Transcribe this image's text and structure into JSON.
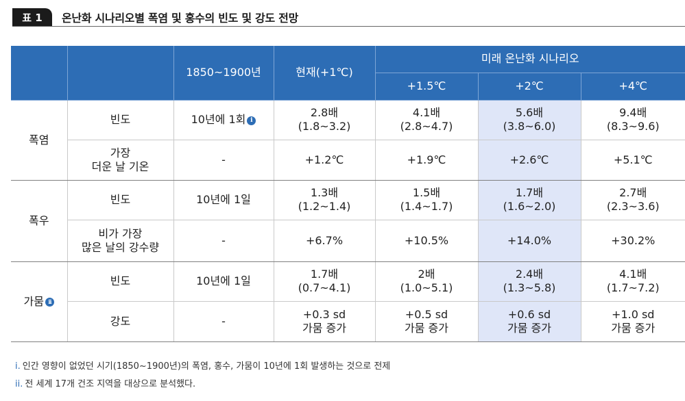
{
  "title": {
    "badge": "표 1",
    "text": "온난화 시나리오별 폭염 및 홍수의 빈도 및 강도 전망"
  },
  "header": {
    "period": "1850~1900년",
    "current": "현재(+1℃)",
    "future": "미래 온난화 시나리오",
    "scenarios": [
      "+1.5℃",
      "+2℃",
      "+4℃"
    ]
  },
  "groups": {
    "heat": "폭염",
    "rain": "폭우",
    "drought": "가뭄"
  },
  "rows": [
    {
      "metric": "빈도",
      "base": "10년에 1회",
      "cur": "2.8배\n(1.8~3.2)",
      "s15": "4.1배\n(2.8~4.7)",
      "s2": "5.6배\n(3.8~6.0)",
      "s4": "9.4배\n(8.3~9.6)"
    },
    {
      "metric": "가장\n더운 날 기온",
      "base": "-",
      "cur": "+1.2℃",
      "s15": "+1.9℃",
      "s2": "+2.6℃",
      "s4": "+5.1℃"
    },
    {
      "metric": "빈도",
      "base": "10년에 1일",
      "cur": "1.3배\n(1.2~1.4)",
      "s15": "1.5배\n(1.4~1.7)",
      "s2": "1.7배\n(1.6~2.0)",
      "s4": "2.7배\n(2.3~3.6)"
    },
    {
      "metric": "비가 가장\n많은 날의 강수량",
      "base": "-",
      "cur": "+6.7%",
      "s15": "+10.5%",
      "s2": "+14.0%",
      "s4": "+30.2%"
    },
    {
      "metric": "빈도",
      "base": "10년에 1일",
      "cur": "1.7배\n(0.7~4.1)",
      "s15": "2배\n(1.0~5.1)",
      "s2": "2.4배\n(1.3~5.8)",
      "s4": "4.1배\n(1.7~7.2)"
    },
    {
      "metric": "강도",
      "base": "-",
      "cur": "+0.3 sd\n가뭄 증가",
      "s15": "+0.5 sd\n가뭄 증가",
      "s2": "+0.6 sd\n가뭄 증가",
      "s4": "+1.0 sd\n가뭄 증가"
    }
  ],
  "footnote_icons": {
    "i": "i",
    "ii": "ii"
  },
  "notes": [
    {
      "num": "i.",
      "text": "인간 영향이 없었던 시기(1850~1900년)의 폭염, 홍수, 가뭄이 10년에 1회 발생하는 것으로 전제"
    },
    {
      "num": "ii.",
      "text": "전 세계 17개 건조 지역을 대상으로 분석했다."
    }
  ],
  "colors": {
    "header_bg": "#2d6db5",
    "highlight": "#dfe6f8"
  }
}
